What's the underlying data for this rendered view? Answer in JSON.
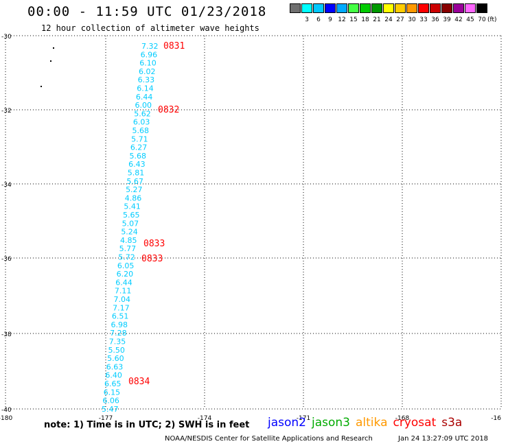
{
  "header": {
    "title": "00:00 - 11:59 UTC 01/23/2018",
    "subtitle": "12 hour collection of altimeter wave heights"
  },
  "legend": {
    "swatches": [
      {
        "color": "#707070",
        "label": ""
      },
      {
        "color": "#00ffff",
        "label": "3"
      },
      {
        "color": "#00c8ff",
        "label": "6"
      },
      {
        "color": "#0000ff",
        "label": "9"
      },
      {
        "color": "#00aaff",
        "label": "12"
      },
      {
        "color": "#44ff44",
        "label": "15"
      },
      {
        "color": "#00cc00",
        "label": "18"
      },
      {
        "color": "#009900",
        "label": "21"
      },
      {
        "color": "#ffff00",
        "label": "24"
      },
      {
        "color": "#ffcc00",
        "label": "27"
      },
      {
        "color": "#ff9900",
        "label": "30"
      },
      {
        "color": "#ff0000",
        "label": "33"
      },
      {
        "color": "#cc0000",
        "label": "36"
      },
      {
        "color": "#880000",
        "label": "39"
      },
      {
        "color": "#990099",
        "label": "42"
      },
      {
        "color": "#ff66ff",
        "label": "45"
      },
      {
        "color": "#000000",
        "label": "70"
      }
    ],
    "unit": "(ft)"
  },
  "axes": {
    "lat_ticks": [
      "-30",
      "-32",
      "-34",
      "-36",
      "-38",
      "-40"
    ],
    "lon_ticks": [
      "-180",
      "-177",
      "-174",
      "-171",
      "-168",
      "-16"
    ]
  },
  "observations": {
    "text_color": "#00ccff",
    "values": [
      "7.32",
      "6.96",
      "6.10",
      "6.02",
      "6.33",
      "6.14",
      "6.44",
      "6.00",
      "5.62",
      "6.03",
      "5.68",
      "5.71",
      "6.27",
      "5.68",
      "6.43",
      "5.81",
      "5.67",
      "5.27",
      "4.86",
      "5.41",
      "5.65",
      "5.07",
      "5.24",
      "4.85",
      "5.77",
      "5.72",
      "6.05",
      "6.20",
      "6.44",
      "7.11",
      "7.04",
      "7.17",
      "6.51",
      "6.98",
      "7.28",
      "7.35",
      "5.50",
      "5.60",
      "6.63",
      "6.40",
      "6.65",
      "6.15",
      "6.06",
      "5.47"
    ]
  },
  "time_labels": {
    "color": "#ff0000",
    "items": [
      "0831",
      "0832",
      "0833",
      "0833",
      "0834"
    ]
  },
  "footer": {
    "note": "note: 1) Time is in UTC; 2) SWH is in feet",
    "satellites": [
      {
        "name": "jason2",
        "color": "#0000ff"
      },
      {
        "name": "jason3",
        "color": "#00aa00"
      },
      {
        "name": "altika",
        "color": "#ff9900"
      },
      {
        "name": "cryosat",
        "color": "#ff0000"
      },
      {
        "name": "s3a",
        "color": "#aa0000"
      }
    ],
    "credit": "NOAA/NESDIS Center for Satellite Applications and Research",
    "timestamp": "Jan 24 13:27:09 UTC 2018"
  }
}
